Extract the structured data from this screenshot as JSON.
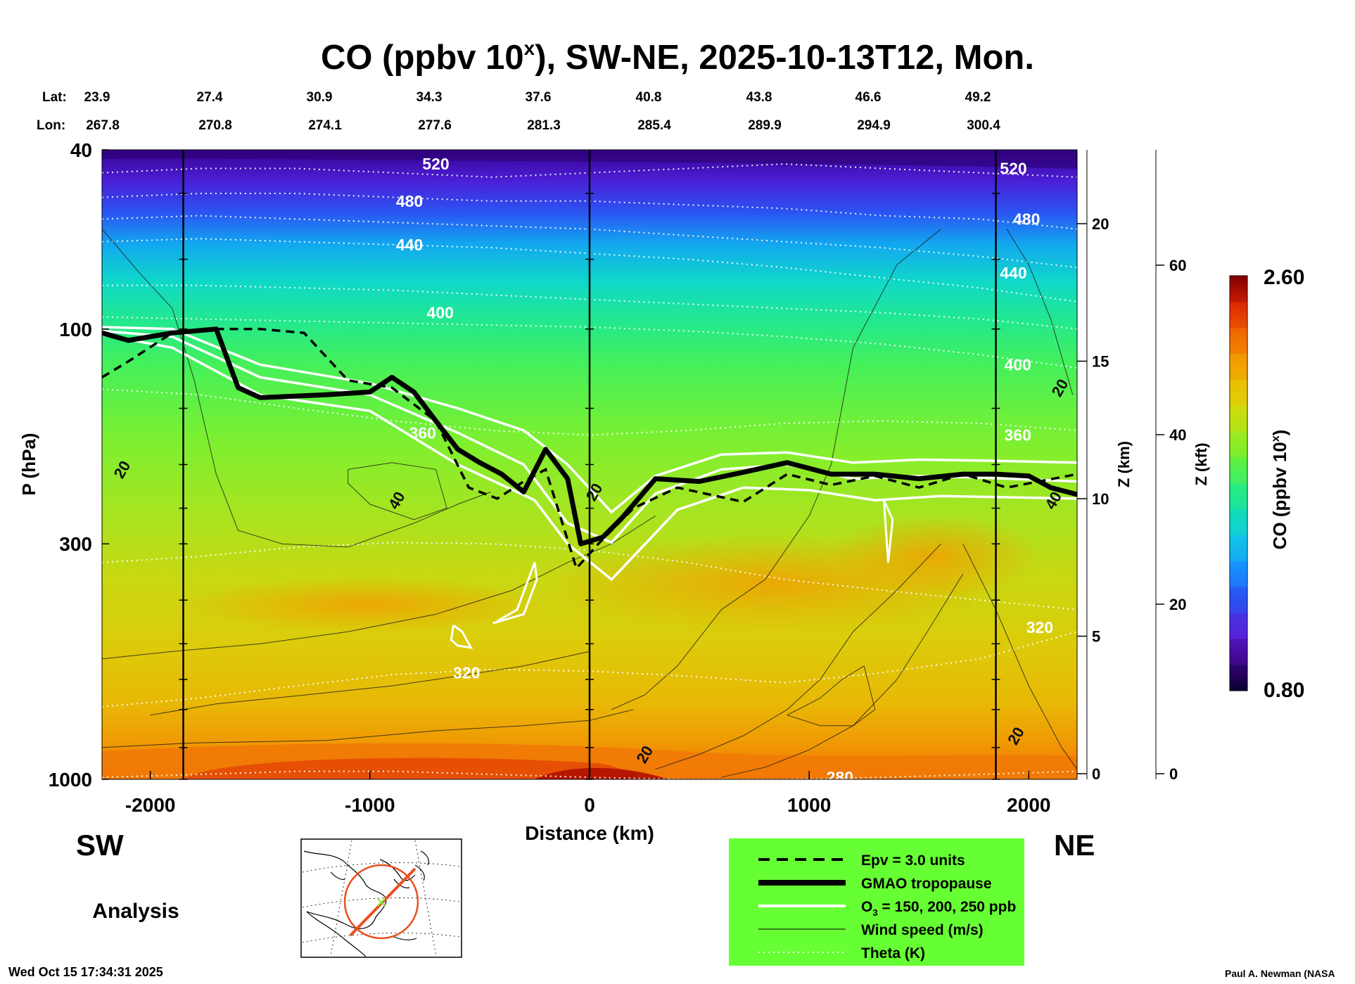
{
  "header": {
    "title_main": "CO (ppbv 10",
    "title_sup": "x",
    "title_rest": "), SW-NE, 2025-10-13T12, Mon."
  },
  "coords": {
    "lat_label": "Lat:",
    "lon_label": "Lon:",
    "lat": [
      "23.9",
      "27.4",
      "30.9",
      "34.3",
      "37.6",
      "40.8",
      "43.8",
      "46.6",
      "49.2"
    ],
    "lon": [
      "267.8",
      "270.8",
      "274.1",
      "277.6",
      "281.3",
      "285.4",
      "289.9",
      "294.9",
      "300.4"
    ]
  },
  "footer": {
    "sw": "SW",
    "ne": "NE",
    "analysis": "Analysis",
    "timestamp": "Wed Oct 15 17:34:31 2025",
    "credit": "Paul A. Newman (NASA"
  },
  "legend": {
    "bg_color": "#66ff33",
    "items": [
      {
        "label": "Epv = 3.0 units",
        "style": "dashed"
      },
      {
        "label": "GMAO tropopause",
        "style": "thick"
      },
      {
        "label": "O",
        "sub": "3",
        "label_rest": " = 150, 200, 250 ppb",
        "style": "white"
      },
      {
        "label": "Wind speed (m/s)",
        "style": "thin"
      },
      {
        "label": "Theta (K)",
        "style": "dotted"
      }
    ]
  },
  "colorbar": {
    "title": "CO (ppbv 10",
    "title_sup": "x",
    "title_end": ")",
    "max_label": "2.60",
    "min_label": "0.80",
    "colors": [
      "#0a0030",
      "#3a007a",
      "#5a1fd6",
      "#2a50f0",
      "#1890ff",
      "#10c8e8",
      "#12e0b0",
      "#30f070",
      "#70f030",
      "#a8e81a",
      "#d8d80a",
      "#f0b800",
      "#f48a00",
      "#f05000",
      "#d42000",
      "#8a0000"
    ]
  },
  "chart_data": {
    "type": "heatmap",
    "title": "CO (ppbv 10^x), SW-NE, 2025-10-13T12, Mon.",
    "xlabel": "Distance (km)",
    "ylabel": "P (hPa)",
    "xlim": [
      -2220,
      2220
    ],
    "ylim_hpa": [
      1000,
      40
    ],
    "x_ticks": [
      {
        "value": -2000,
        "label": "-2000"
      },
      {
        "value": -1000,
        "label": "-1000"
      },
      {
        "value": 0,
        "label": "0"
      },
      {
        "value": 1000,
        "label": "1000"
      },
      {
        "value": 2000,
        "label": "2000"
      }
    ],
    "p_ticks": [
      {
        "value": 40,
        "label": "40"
      },
      {
        "value": 100,
        "label": "100"
      },
      {
        "value": 300,
        "label": "300"
      },
      {
        "value": 1000,
        "label": "1000"
      }
    ],
    "z_km_label": "Z (km)",
    "z_km_ticks": [
      {
        "value": 0,
        "label": "0"
      },
      {
        "value": 5,
        "label": "5"
      },
      {
        "value": 10,
        "label": "10"
      },
      {
        "value": 15,
        "label": "15"
      },
      {
        "value": 20,
        "label": "20"
      }
    ],
    "z_kft_label": "Z (kft)",
    "z_kft_ticks": [
      {
        "value": 0,
        "label": "0"
      },
      {
        "value": 20,
        "label": "20"
      },
      {
        "value": 40,
        "label": "40"
      },
      {
        "value": 60,
        "label": "60"
      }
    ],
    "vertical_lines_km": [
      -1850,
      0,
      1850
    ],
    "theta_labels": [
      {
        "x": -700,
        "p": 43,
        "label": "520"
      },
      {
        "x": 1930,
        "p": 44,
        "label": "520"
      },
      {
        "x": -820,
        "p": 52,
        "label": "480"
      },
      {
        "x": 1990,
        "p": 57,
        "label": "480"
      },
      {
        "x": -820,
        "p": 65,
        "label": "440"
      },
      {
        "x": 1930,
        "p": 75,
        "label": "440"
      },
      {
        "x": -680,
        "p": 92,
        "label": "400"
      },
      {
        "x": 1950,
        "p": 120,
        "label": "400"
      },
      {
        "x": -760,
        "p": 170,
        "label": "360"
      },
      {
        "x": 1950,
        "p": 172,
        "label": "360"
      },
      {
        "x": -560,
        "p": 580,
        "label": "320"
      },
      {
        "x": 2050,
        "p": 460,
        "label": "320"
      },
      {
        "x": 1140,
        "p": 990,
        "label": "280"
      }
    ],
    "wind_labels": [
      {
        "x": -2130,
        "p": 205,
        "label": "20"
      },
      {
        "x": -880,
        "p": 240,
        "label": "40"
      },
      {
        "x": 2140,
        "p": 135,
        "label": "20"
      },
      {
        "x": 2110,
        "p": 240,
        "label": "40"
      },
      {
        "x": 250,
        "p": 880,
        "label": "20"
      },
      {
        "x": 1940,
        "p": 800,
        "label": "20"
      },
      {
        "x": 20,
        "p": 230,
        "label": "20"
      }
    ],
    "tropopause_hpa": [
      {
        "x": -2220,
        "p": 102
      },
      {
        "x": -2100,
        "p": 106
      },
      {
        "x": -1900,
        "p": 102
      },
      {
        "x": -1700,
        "p": 100
      },
      {
        "x": -1600,
        "p": 135
      },
      {
        "x": -1500,
        "p": 142
      },
      {
        "x": -1200,
        "p": 140
      },
      {
        "x": -1000,
        "p": 138
      },
      {
        "x": -900,
        "p": 128
      },
      {
        "x": -800,
        "p": 138
      },
      {
        "x": -700,
        "p": 160
      },
      {
        "x": -600,
        "p": 185
      },
      {
        "x": -500,
        "p": 198
      },
      {
        "x": -400,
        "p": 210
      },
      {
        "x": -300,
        "p": 230
      },
      {
        "x": -200,
        "p": 185
      },
      {
        "x": -100,
        "p": 215
      },
      {
        "x": -40,
        "p": 300
      },
      {
        "x": 60,
        "p": 290
      },
      {
        "x": 150,
        "p": 262
      },
      {
        "x": 300,
        "p": 215
      },
      {
        "x": 500,
        "p": 218
      },
      {
        "x": 700,
        "p": 208
      },
      {
        "x": 900,
        "p": 198
      },
      {
        "x": 1100,
        "p": 210
      },
      {
        "x": 1300,
        "p": 210
      },
      {
        "x": 1500,
        "p": 215
      },
      {
        "x": 1700,
        "p": 210
      },
      {
        "x": 1850,
        "p": 210
      },
      {
        "x": 2000,
        "p": 212
      },
      {
        "x": 2100,
        "p": 225
      },
      {
        "x": 2220,
        "p": 233
      }
    ],
    "epv_hpa": [
      {
        "x": -2220,
        "p": 128
      },
      {
        "x": -2100,
        "p": 118
      },
      {
        "x": -1900,
        "p": 102
      },
      {
        "x": -1700,
        "p": 100
      },
      {
        "x": -1500,
        "p": 100
      },
      {
        "x": -1300,
        "p": 102
      },
      {
        "x": -1100,
        "p": 130
      },
      {
        "x": -900,
        "p": 135
      },
      {
        "x": -700,
        "p": 160
      },
      {
        "x": -550,
        "p": 225
      },
      {
        "x": -420,
        "p": 238
      },
      {
        "x": -300,
        "p": 218
      },
      {
        "x": -200,
        "p": 205
      },
      {
        "x": -60,
        "p": 340
      },
      {
        "x": 40,
        "p": 300
      },
      {
        "x": 200,
        "p": 250
      },
      {
        "x": 400,
        "p": 225
      },
      {
        "x": 700,
        "p": 242
      },
      {
        "x": 900,
        "p": 210
      },
      {
        "x": 1100,
        "p": 222
      },
      {
        "x": 1300,
        "p": 212
      },
      {
        "x": 1500,
        "p": 225
      },
      {
        "x": 1700,
        "p": 210
      },
      {
        "x": 1900,
        "p": 225
      },
      {
        "x": 2220,
        "p": 210
      }
    ],
    "o3_contours_hpa": [
      {
        "name": "150 ppb",
        "points": [
          {
            "x": -2220,
            "p": 99
          },
          {
            "x": -1900,
            "p": 100
          },
          {
            "x": -1500,
            "p": 120
          },
          {
            "x": -1000,
            "p": 132
          },
          {
            "x": -600,
            "p": 150
          },
          {
            "x": -300,
            "p": 168
          },
          {
            "x": -100,
            "p": 200
          },
          {
            "x": 100,
            "p": 255
          },
          {
            "x": 300,
            "p": 212
          },
          {
            "x": 600,
            "p": 190
          },
          {
            "x": 900,
            "p": 188
          },
          {
            "x": 1200,
            "p": 198
          },
          {
            "x": 1500,
            "p": 195
          },
          {
            "x": 1800,
            "p": 196
          },
          {
            "x": 2220,
            "p": 198
          }
        ]
      },
      {
        "name": "200 ppb",
        "points": [
          {
            "x": -2220,
            "p": 101
          },
          {
            "x": -1900,
            "p": 104
          },
          {
            "x": -1500,
            "p": 128
          },
          {
            "x": -1000,
            "p": 140
          },
          {
            "x": -600,
            "p": 170
          },
          {
            "x": -300,
            "p": 200
          },
          {
            "x": -100,
            "p": 270
          },
          {
            "x": 100,
            "p": 298
          },
          {
            "x": 300,
            "p": 232
          },
          {
            "x": 600,
            "p": 205
          },
          {
            "x": 900,
            "p": 200
          },
          {
            "x": 1200,
            "p": 215
          },
          {
            "x": 1500,
            "p": 212
          },
          {
            "x": 1800,
            "p": 214
          },
          {
            "x": 2220,
            "p": 218
          }
        ]
      },
      {
        "name": "250 ppb",
        "points": [
          {
            "x": -2220,
            "p": 103
          },
          {
            "x": -1900,
            "p": 110
          },
          {
            "x": -1500,
            "p": 140
          },
          {
            "x": -1000,
            "p": 152
          },
          {
            "x": -600,
            "p": 200
          },
          {
            "x": -250,
            "p": 240
          },
          {
            "x": -100,
            "p": 300
          },
          {
            "x": 100,
            "p": 360
          },
          {
            "x": 400,
            "p": 252
          },
          {
            "x": 700,
            "p": 225
          },
          {
            "x": 1000,
            "p": 228
          },
          {
            "x": 1300,
            "p": 240
          },
          {
            "x": 1600,
            "p": 235
          },
          {
            "x": 2220,
            "p": 238
          }
        ]
      }
    ]
  }
}
